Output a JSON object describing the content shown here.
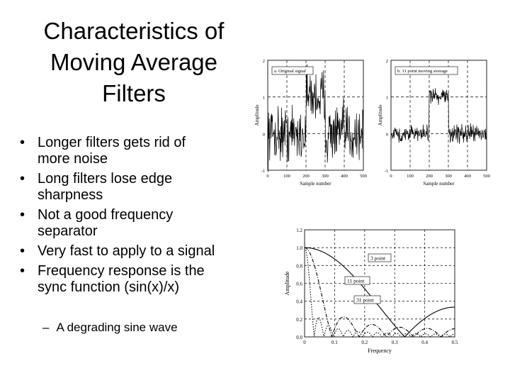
{
  "slide": {
    "title_lines": [
      "Characteristics of",
      "Moving Average",
      "Filters"
    ],
    "bullets": [
      [
        "Longer filters gets rid of",
        "more noise"
      ],
      [
        "Long filters lose edge",
        "sharpness"
      ],
      [
        "Not a good frequency",
        "separator"
      ],
      [
        "Very fast to apply to a signal"
      ],
      [
        "Frequency response is the",
        "sync function (sin(x)/x)"
      ]
    ],
    "sub_bullet": "A degrading sine wave",
    "bullet_glyph": "•",
    "sub_glyph": "–"
  },
  "chart_data": [
    {
      "type": "line",
      "title": "a. Original signal",
      "xlabel": "Sample number",
      "ylabel": "Amplitude",
      "xlim": [
        0,
        500
      ],
      "ylim": [
        -1,
        2
      ],
      "xticks": [
        "0",
        "100",
        "200",
        "300",
        "400",
        "500"
      ],
      "yticks": [
        "-1",
        "0",
        "1",
        "2"
      ],
      "signal": {
        "low": 0,
        "high": 1,
        "pulse_start": 200,
        "pulse_end": 300,
        "noise": "large"
      }
    },
    {
      "type": "line",
      "title": "b. 11 point moving average",
      "xlabel": "Sample number",
      "ylabel": "Amplitude",
      "xlim": [
        0,
        500
      ],
      "ylim": [
        -1,
        2
      ],
      "xticks": [
        "0",
        "100",
        "200",
        "300",
        "400",
        "500"
      ],
      "yticks": [
        "-1",
        "0",
        "1",
        "2"
      ],
      "signal": {
        "low": 0,
        "high": 1,
        "pulse_start": 200,
        "pulse_end": 300,
        "noise": "small"
      }
    },
    {
      "type": "line",
      "xlabel": "Frequency",
      "ylabel": "Amplitude",
      "xlim": [
        0,
        0.5
      ],
      "ylim": [
        0,
        1.2
      ],
      "xticks": [
        "0",
        "0.1",
        "0.2",
        "0.3",
        "0.4",
        "0.5"
      ],
      "yticks": [
        "0.0",
        "0.2",
        "0.4",
        "0.6",
        "0.8",
        "1.0",
        "1.2"
      ],
      "series": [
        {
          "name": "3 point",
          "points": 3,
          "style": "solid"
        },
        {
          "name": "11 point",
          "points": 11,
          "style": "dashdot"
        },
        {
          "name": "31 point",
          "points": 31,
          "style": "dotted"
        }
      ]
    }
  ]
}
